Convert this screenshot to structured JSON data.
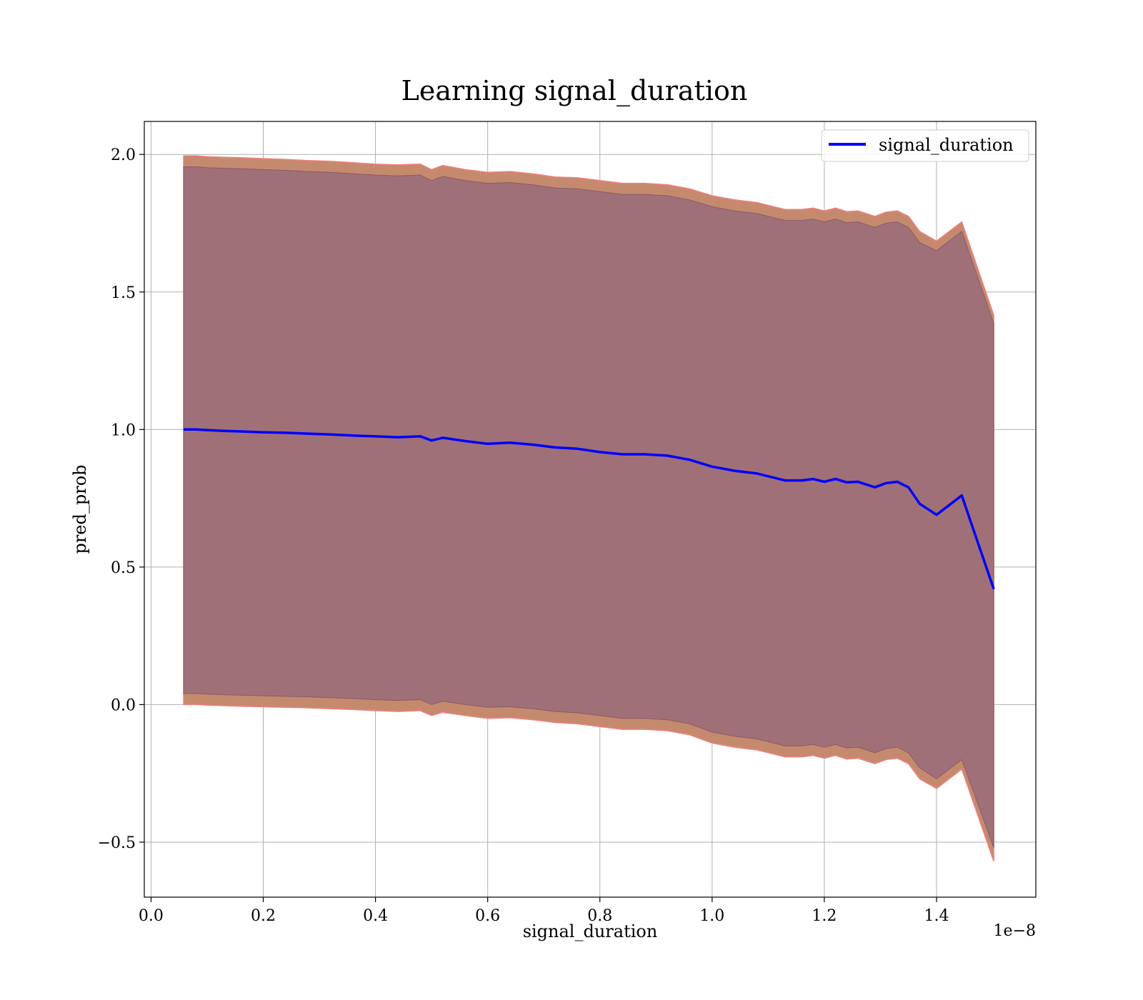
{
  "chart_data": {
    "type": "line",
    "title": "Learning signal_duration",
    "xlabel": "signal_duration",
    "ylabel": "pred_prob",
    "x_offset_label": "1e−8",
    "xlim": [
      -0.012,
      1.577
    ],
    "ylim": [
      -0.7,
      2.12
    ],
    "grid": true,
    "legend_position": "top-right",
    "x_ticks": [
      0.0,
      0.2,
      0.4,
      0.6,
      0.8,
      1.0,
      1.2,
      1.4
    ],
    "x_tick_labels": [
      "0.0",
      "0.2",
      "0.4",
      "0.6",
      "0.8",
      "1.0",
      "1.2",
      "1.4"
    ],
    "y_ticks": [
      -0.5,
      0.0,
      0.5,
      1.0,
      1.5,
      2.0
    ],
    "y_tick_labels": [
      "−0.5",
      "0.0",
      "0.5",
      "1.0",
      "1.5",
      "2.0"
    ],
    "colors": {
      "line": "#0000ff",
      "outer_band": "#c58a6e",
      "outer_band_edge": "#f08080",
      "inner_band": "#a07078"
    },
    "series": [
      {
        "name": "signal_duration",
        "x": [
          0.058,
          0.08,
          0.1,
          0.13,
          0.16,
          0.2,
          0.24,
          0.28,
          0.32,
          0.36,
          0.4,
          0.44,
          0.48,
          0.5,
          0.52,
          0.56,
          0.6,
          0.64,
          0.68,
          0.72,
          0.76,
          0.8,
          0.84,
          0.88,
          0.92,
          0.96,
          1.0,
          1.04,
          1.08,
          1.1,
          1.13,
          1.16,
          1.18,
          1.2,
          1.22,
          1.24,
          1.26,
          1.29,
          1.31,
          1.33,
          1.35,
          1.37,
          1.4,
          1.445,
          1.502
        ],
        "values": [
          1.0,
          1.0,
          0.998,
          0.995,
          0.993,
          0.99,
          0.988,
          0.985,
          0.982,
          0.978,
          0.975,
          0.972,
          0.975,
          0.96,
          0.97,
          0.958,
          0.948,
          0.952,
          0.945,
          0.935,
          0.93,
          0.918,
          0.91,
          0.91,
          0.905,
          0.89,
          0.865,
          0.85,
          0.84,
          0.83,
          0.815,
          0.815,
          0.82,
          0.81,
          0.82,
          0.808,
          0.81,
          0.79,
          0.805,
          0.81,
          0.79,
          0.73,
          0.69,
          0.76,
          0.42
        ],
        "outer_band_upper": [
          1.995,
          1.995,
          1.992,
          1.99,
          1.988,
          1.985,
          1.982,
          1.978,
          1.975,
          1.97,
          1.965,
          1.962,
          1.965,
          1.945,
          1.96,
          1.945,
          1.935,
          1.938,
          1.93,
          1.918,
          1.915,
          1.905,
          1.895,
          1.895,
          1.89,
          1.875,
          1.85,
          1.835,
          1.825,
          1.815,
          1.8,
          1.8,
          1.805,
          1.795,
          1.805,
          1.792,
          1.795,
          1.775,
          1.79,
          1.795,
          1.775,
          1.72,
          1.685,
          1.755,
          1.415
        ],
        "inner_band_upper": [
          1.955,
          1.955,
          1.952,
          1.95,
          1.948,
          1.945,
          1.942,
          1.938,
          1.935,
          1.93,
          1.925,
          1.922,
          1.925,
          1.905,
          1.92,
          1.905,
          1.895,
          1.898,
          1.89,
          1.878,
          1.875,
          1.865,
          1.855,
          1.855,
          1.85,
          1.835,
          1.81,
          1.795,
          1.785,
          1.775,
          1.76,
          1.76,
          1.765,
          1.755,
          1.765,
          1.752,
          1.755,
          1.735,
          1.75,
          1.755,
          1.735,
          1.68,
          1.65,
          1.72,
          1.385
        ],
        "inner_band_lower": [
          0.04,
          0.04,
          0.038,
          0.036,
          0.034,
          0.032,
          0.03,
          0.028,
          0.025,
          0.022,
          0.018,
          0.015,
          0.018,
          0.0,
          0.012,
          0.0,
          -0.01,
          -0.008,
          -0.015,
          -0.025,
          -0.03,
          -0.04,
          -0.05,
          -0.05,
          -0.055,
          -0.07,
          -0.1,
          -0.115,
          -0.125,
          -0.135,
          -0.15,
          -0.15,
          -0.145,
          -0.155,
          -0.145,
          -0.158,
          -0.155,
          -0.175,
          -0.16,
          -0.155,
          -0.175,
          -0.23,
          -0.27,
          -0.2,
          -0.52
        ],
        "outer_band_lower": [
          0.0,
          0.0,
          -0.002,
          -0.004,
          -0.006,
          -0.008,
          -0.01,
          -0.012,
          -0.015,
          -0.018,
          -0.022,
          -0.025,
          -0.022,
          -0.04,
          -0.028,
          -0.04,
          -0.05,
          -0.048,
          -0.055,
          -0.065,
          -0.07,
          -0.08,
          -0.09,
          -0.09,
          -0.095,
          -0.11,
          -0.14,
          -0.155,
          -0.165,
          -0.175,
          -0.19,
          -0.19,
          -0.185,
          -0.195,
          -0.185,
          -0.198,
          -0.195,
          -0.215,
          -0.2,
          -0.195,
          -0.215,
          -0.27,
          -0.305,
          -0.235,
          -0.57
        ]
      }
    ]
  }
}
